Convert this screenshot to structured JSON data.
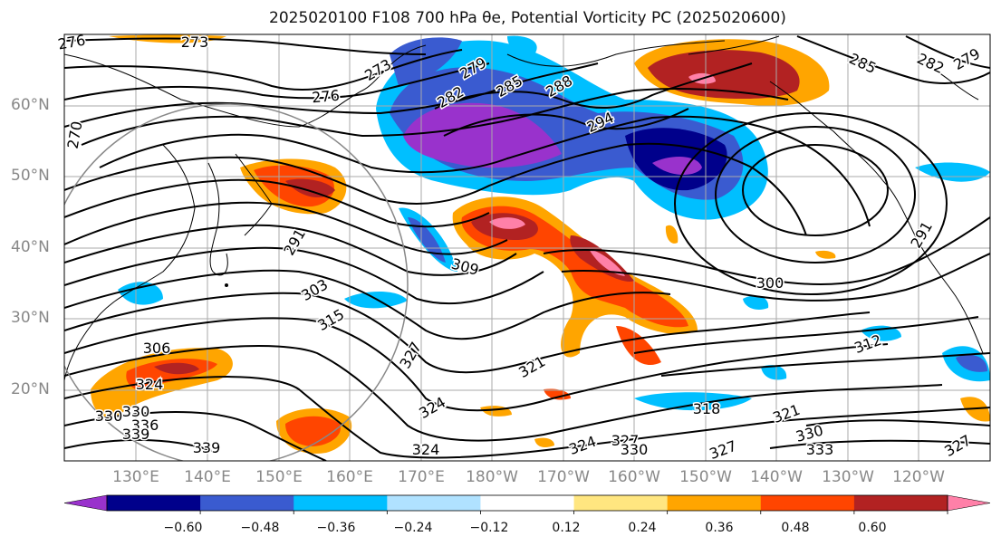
{
  "title": "2025020100 F108 700 hPa θe, Potential Vorticity PC (2025020600)",
  "lat_labels": [
    "60°N",
    "50°N",
    "40°N",
    "30°N",
    "20°N"
  ],
  "lon_labels": [
    "130°E",
    "140°E",
    "150°E",
    "160°E",
    "170°E",
    "180°W",
    "170°W",
    "160°W",
    "150°W",
    "140°W",
    "130°W",
    "120°W"
  ],
  "contour_labels": [
    "276",
    "273",
    "276",
    "273",
    "279",
    "282",
    "285",
    "288",
    "294",
    "285",
    "282",
    "279",
    "270",
    "291",
    "303",
    "309",
    "300",
    "291",
    "315",
    "306",
    "327",
    "321",
    "312",
    "324",
    "330",
    "324",
    "318",
    "321",
    "330",
    "336",
    "339",
    "339",
    "324",
    "327",
    "324",
    "330",
    "327",
    "330",
    "333",
    "327"
  ],
  "colorbar": {
    "tick_labels": [
      "−0.60",
      "−0.48",
      "−0.36",
      "−0.24",
      "−0.12",
      "0.12",
      "0.24",
      "0.36",
      "0.48",
      "0.60"
    ],
    "colors": [
      "#9932cc",
      "#00008b",
      "#3a5bd0",
      "#00bfff",
      "#b0e2ff",
      "#ffffff",
      "#ffe680",
      "#ffa500",
      "#ff4500",
      "#b22222",
      "#ff80a8"
    ]
  }
}
